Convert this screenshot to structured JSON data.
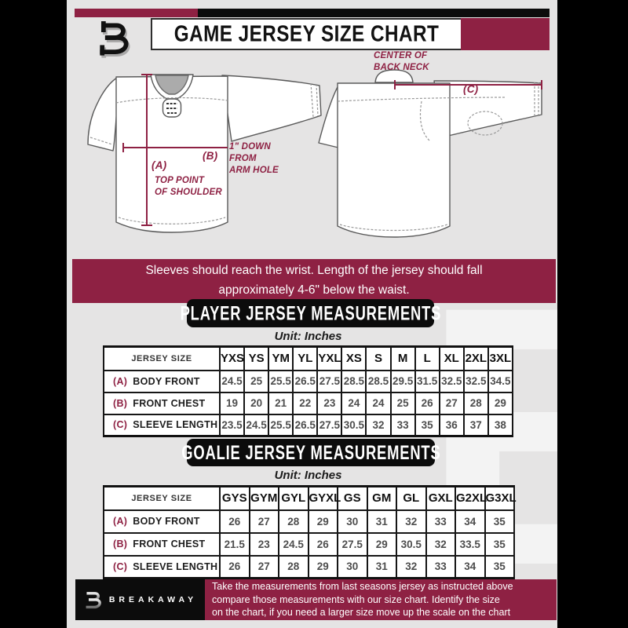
{
  "header": {
    "title": "GAME JERSEY SIZE CHART"
  },
  "diagram": {
    "front": {
      "key_a": "(A)",
      "note_a": "TOP POINT\nOF SHOULDER",
      "key_b": "(B)",
      "note_b": "1\" DOWN\nFROM\nARM HOLE"
    },
    "back": {
      "key_c": "(C)",
      "note_c": "CENTER OF\nBACK NECK"
    }
  },
  "notice": "Sleeves should reach the wrist. Length of the jersey should fall\napproximately 4-6\" below the waist.",
  "watermark": "B",
  "chart_data": [
    {
      "type": "table",
      "name": "player_jersey_measurements",
      "title": "PLAYER JERSEY MEASUREMENTS",
      "unit": "Unit: Inches",
      "columns": [
        "JERSEY SIZE",
        "YXS",
        "YS",
        "YM",
        "YL",
        "YXL",
        "XS",
        "S",
        "M",
        "L",
        "XL",
        "2XL",
        "3XL"
      ],
      "rows": [
        {
          "key": "(A)",
          "label": "BODY FRONT",
          "values": [
            24.5,
            25,
            25.5,
            26.5,
            27.5,
            28.5,
            28.5,
            29.5,
            31.5,
            32.5,
            32.5,
            34.5
          ]
        },
        {
          "key": "(B)",
          "label": "FRONT CHEST",
          "values": [
            19,
            20,
            21,
            22,
            23,
            24,
            24,
            25,
            26,
            27,
            28,
            29
          ]
        },
        {
          "key": "(C)",
          "label": "SLEEVE LENGTH",
          "values": [
            23.5,
            24.5,
            25.5,
            26.5,
            27.5,
            30.5,
            32,
            33,
            35,
            36,
            37,
            38
          ]
        }
      ]
    },
    {
      "type": "table",
      "name": "goalie_jersey_measurements",
      "title": "GOALIE JERSEY MEASUREMENTS",
      "unit": "Unit: Inches",
      "columns": [
        "JERSEY SIZE",
        "GYS",
        "GYM",
        "GYL",
        "GYXL",
        "GS",
        "GM",
        "GL",
        "GXL",
        "G2XL",
        "G3XL"
      ],
      "rows": [
        {
          "key": "(A)",
          "label": "BODY FRONT",
          "values": [
            26,
            27,
            28,
            29,
            30,
            31,
            32,
            33,
            34,
            35
          ]
        },
        {
          "key": "(B)",
          "label": "FRONT CHEST",
          "values": [
            21.5,
            23,
            24.5,
            26,
            27.5,
            29,
            30.5,
            32,
            33.5,
            35
          ]
        },
        {
          "key": "(C)",
          "label": "SLEEVE LENGTH",
          "values": [
            26,
            27,
            28,
            29,
            30,
            31,
            32,
            33,
            34,
            35
          ]
        }
      ]
    }
  ],
  "footer": {
    "brand": "BREAKAWAY",
    "text": "Take the measurements from last seasons jersey as instructed above\ncompare those measurements  with our size chart. Identify the size\non the chart, if you need a larger size move up the scale on the chart"
  },
  "colors": {
    "maroon": "#8e2143",
    "black": "#0c0c0c",
    "background": "#e5e4e4"
  }
}
